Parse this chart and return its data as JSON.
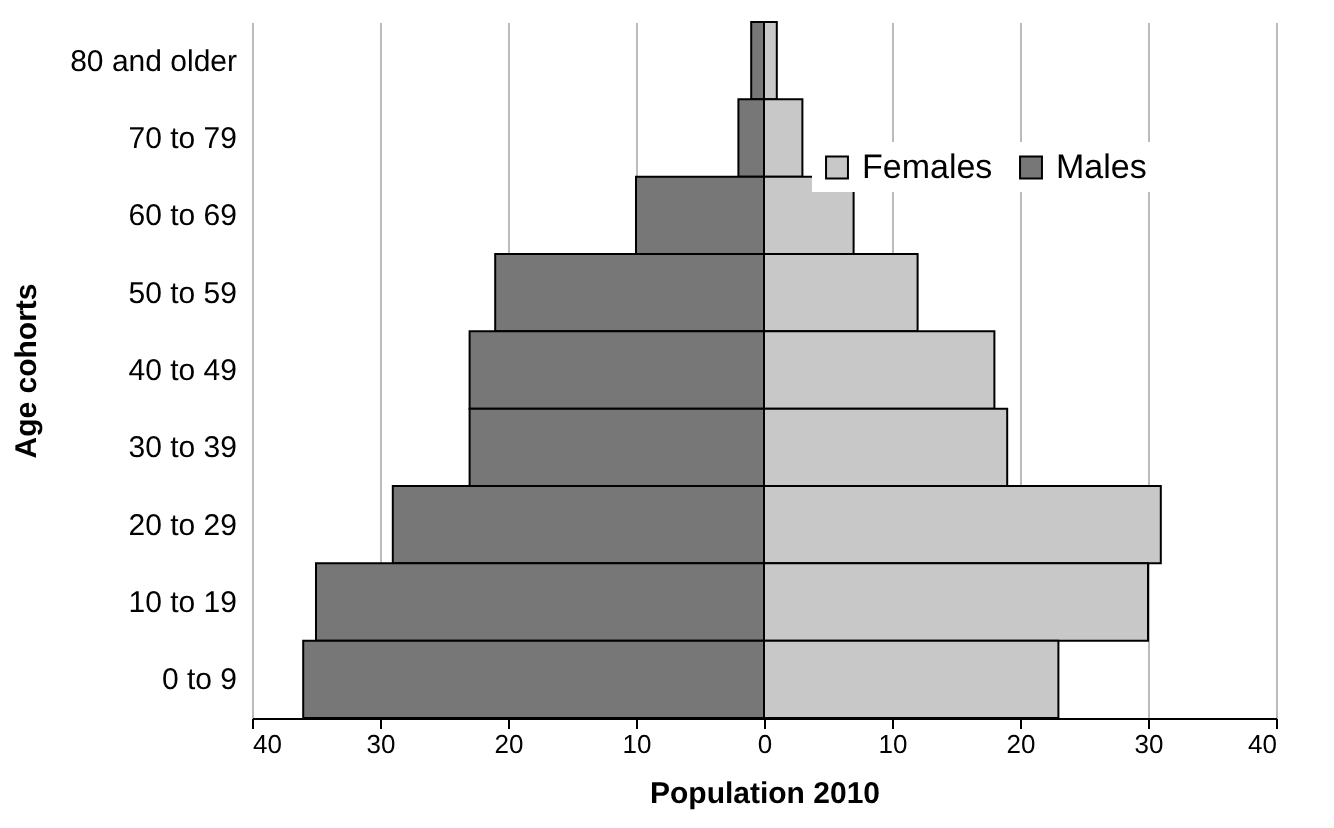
{
  "chart_data": {
    "type": "bar",
    "orientation": "horizontal",
    "xlabel": "Population 2010",
    "ylabel": "Age cohorts",
    "categories": [
      "80 and older",
      "70 to 79",
      "60 to 69",
      "50 to 59",
      "40 to 49",
      "30 to 39",
      "20 to 29",
      "10 to 19",
      "0 to 9"
    ],
    "series": [
      {
        "name": "Females",
        "color": "#c8c8c8",
        "values": [
          1,
          3,
          7,
          12,
          18,
          19,
          31,
          30,
          23
        ]
      },
      {
        "name": "Males",
        "color": "#777777",
        "values": [
          -1,
          -2,
          -10,
          -21,
          -23,
          -23,
          -29,
          -35,
          -36
        ]
      }
    ],
    "xlim": [
      -40,
      40
    ],
    "xticks": [
      {
        "value": -40,
        "label": "40"
      },
      {
        "value": -30,
        "label": "30"
      },
      {
        "value": -20,
        "label": "20"
      },
      {
        "value": -10,
        "label": "10"
      },
      0,
      10,
      20,
      30,
      40
    ],
    "stacked": true,
    "grid": "x",
    "legend": "top right"
  }
}
